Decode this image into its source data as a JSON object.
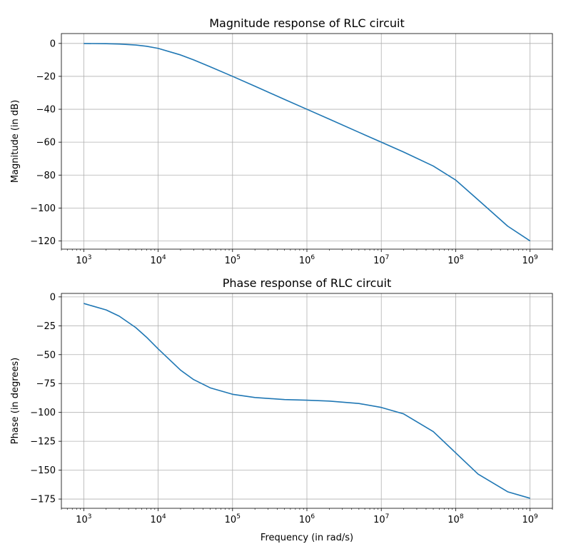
{
  "chart_data": [
    {
      "type": "line",
      "title": "Magnitude response of RLC circuit",
      "xlabel": "",
      "ylabel": "Magnitude (in dB)",
      "xscale": "log",
      "xlim": [
        500,
        2000000000
      ],
      "ylim": [
        -125,
        6
      ],
      "grid": true,
      "line_color": "#1f77b4",
      "xticks": [
        {
          "base": "10",
          "exp": "3",
          "value": 1000
        },
        {
          "base": "10",
          "exp": "4",
          "value": 10000
        },
        {
          "base": "10",
          "exp": "5",
          "value": 100000
        },
        {
          "base": "10",
          "exp": "6",
          "value": 1000000
        },
        {
          "base": "10",
          "exp": "7",
          "value": 10000000
        },
        {
          "base": "10",
          "exp": "8",
          "value": 100000000
        },
        {
          "base": "10",
          "exp": "9",
          "value": 1000000000
        }
      ],
      "yticks": [
        {
          "label": "0",
          "value": 0
        },
        {
          "label": "−20",
          "value": -20
        },
        {
          "label": "−40",
          "value": -40
        },
        {
          "label": "−60",
          "value": -60
        },
        {
          "label": "−80",
          "value": -80
        },
        {
          "label": "−100",
          "value": -100
        },
        {
          "label": "−120",
          "value": -120
        }
      ],
      "series": [
        {
          "x": [
            1000,
            2000,
            3000,
            5000,
            7000,
            10000,
            20000,
            30000,
            50000,
            100000,
            200000,
            500000,
            1000000,
            2000000,
            5000000,
            10000000,
            20000000,
            50000000,
            100000000,
            200000000,
            500000000,
            1000000000
          ],
          "y": [
            -0.04,
            -0.17,
            -0.37,
            -0.97,
            -1.73,
            -3.0,
            -6.99,
            -10.0,
            -14.15,
            -20.0,
            -26.0,
            -34.0,
            -40.0,
            -46.0,
            -54.0,
            -60.0,
            -66.0,
            -74.5,
            -83.0,
            -95.0,
            -111.0,
            -120.0
          ]
        }
      ]
    },
    {
      "type": "line",
      "title": "Phase response of RLC circuit",
      "xlabel": "Frequency (in rad/s)",
      "ylabel": "Phase (in degrees)",
      "xscale": "log",
      "xlim": [
        500,
        2000000000
      ],
      "ylim": [
        -183,
        3
      ],
      "grid": true,
      "line_color": "#1f77b4",
      "xticks": [
        {
          "base": "10",
          "exp": "3",
          "value": 1000
        },
        {
          "base": "10",
          "exp": "4",
          "value": 10000
        },
        {
          "base": "10",
          "exp": "5",
          "value": 100000
        },
        {
          "base": "10",
          "exp": "6",
          "value": 1000000
        },
        {
          "base": "10",
          "exp": "7",
          "value": 10000000
        },
        {
          "base": "10",
          "exp": "8",
          "value": 100000000
        },
        {
          "base": "10",
          "exp": "9",
          "value": 1000000000
        }
      ],
      "yticks": [
        {
          "label": "0",
          "value": 0
        },
        {
          "label": "−25",
          "value": -25
        },
        {
          "label": "−50",
          "value": -50
        },
        {
          "label": "−75",
          "value": -75
        },
        {
          "label": "−100",
          "value": -100
        },
        {
          "label": "−125",
          "value": -125
        },
        {
          "label": "−150",
          "value": -150
        },
        {
          "label": "−175",
          "value": -175
        }
      ],
      "series": [
        {
          "x": [
            1000,
            2000,
            3000,
            5000,
            7000,
            10000,
            20000,
            30000,
            50000,
            100000,
            200000,
            500000,
            1000000,
            2000000,
            5000000,
            10000000,
            20000000,
            50000000,
            100000000,
            200000000,
            500000000,
            1000000000
          ],
          "y": [
            -5.7,
            -11.3,
            -16.7,
            -26.6,
            -35.0,
            -45.0,
            -63.4,
            -71.6,
            -78.7,
            -84.3,
            -87.1,
            -88.9,
            -89.4,
            -90.2,
            -92.3,
            -95.7,
            -101.3,
            -116.6,
            -135.0,
            -153.4,
            -168.7,
            -174.3
          ]
        }
      ]
    }
  ]
}
